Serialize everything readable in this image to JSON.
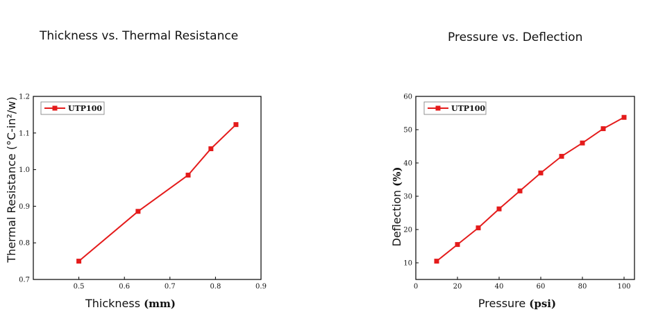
{
  "chart_data": [
    {
      "type": "line",
      "title": "Thickness vs. Thermal Resistance",
      "xlabel": "Thickness",
      "xunit": "(mm)",
      "ylabel": "Thermal Resistance (°C-in²/w)",
      "xlim": [
        0.4,
        0.9
      ],
      "ylim": [
        0.7,
        1.2
      ],
      "xticks": [
        "0.5",
        "0.6",
        "0.7",
        "0.8",
        "0.9"
      ],
      "yticks": [
        "0.7",
        "0.8",
        "0.9",
        "1.0",
        "1.1",
        "1.2"
      ],
      "legend_position": "top-left",
      "grid": false,
      "series": [
        {
          "name": "UTP100",
          "color": "#e41b1b",
          "marker": "square",
          "x": [
            0.5,
            0.63,
            0.74,
            0.79,
            0.845
          ],
          "y": [
            0.75,
            0.886,
            0.985,
            1.057,
            1.123
          ]
        }
      ]
    },
    {
      "type": "line",
      "title": "Pressure vs. Deflection",
      "xlabel": "Pressure",
      "xunit": "(psi)",
      "ylabel": "Deflection",
      "yunit": "(%)",
      "xlim": [
        0,
        105
      ],
      "ylim": [
        5,
        60
      ],
      "xticks": [
        "0",
        "20",
        "40",
        "60",
        "80",
        "100"
      ],
      "yticks": [
        "10",
        "20",
        "30",
        "40",
        "50",
        "60"
      ],
      "legend_position": "top-left",
      "grid": false,
      "series": [
        {
          "name": "UTP100",
          "color": "#e41b1b",
          "marker": "square",
          "x": [
            10,
            20,
            30,
            40,
            50,
            60,
            70,
            80,
            90,
            100
          ],
          "y": [
            10.5,
            15.5,
            20.5,
            26.2,
            31.6,
            37.0,
            42.0,
            46.0,
            50.3,
            53.7
          ]
        }
      ]
    }
  ]
}
